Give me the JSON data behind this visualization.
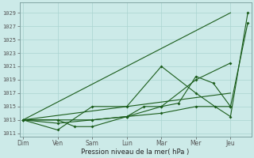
{
  "bg_color": "#cceae8",
  "grid_color": "#aad4d0",
  "line_color": "#1a5c1a",
  "xlabel": "Pression niveau de la mer( hPa )",
  "x_labels": [
    "Dim",
    "Ven",
    "Sam",
    "Lun",
    "Mar",
    "Mer",
    "Jeu"
  ],
  "ylim": [
    1010.5,
    1030.5
  ],
  "xlim": [
    -0.1,
    6.6
  ],
  "yticks": [
    1011,
    1013,
    1015,
    1017,
    1019,
    1021,
    1023,
    1025,
    1027,
    1029
  ],
  "lines": [
    {
      "x": [
        0,
        1,
        2,
        3,
        4,
        5,
        5.55,
        6,
        6.5
      ],
      "y": [
        1013,
        1011.5,
        1015,
        1015,
        1021,
        1017,
        1015,
        1013.5,
        1029
      ]
    },
    {
      "x": [
        0,
        1,
        1.5,
        2,
        3,
        3.5,
        4,
        4.5,
        5,
        5.5,
        6,
        6.5
      ],
      "y": [
        1013,
        1013,
        1012,
        1012,
        1013.5,
        1015,
        1015,
        1015.5,
        1019.5,
        1018.5,
        1015,
        1027.5
      ]
    },
    {
      "x": [
        0,
        1,
        2,
        3,
        4,
        5,
        6
      ],
      "y": [
        1013,
        1012.5,
        1013,
        1013.5,
        1015,
        1019,
        1021.5
      ]
    },
    {
      "x": [
        0,
        1,
        2,
        3,
        4,
        5,
        6
      ],
      "y": [
        1013,
        1013,
        1013,
        1013.5,
        1014,
        1015,
        1015
      ]
    },
    {
      "x": [
        0,
        6
      ],
      "y": [
        1013,
        1029
      ]
    }
  ]
}
